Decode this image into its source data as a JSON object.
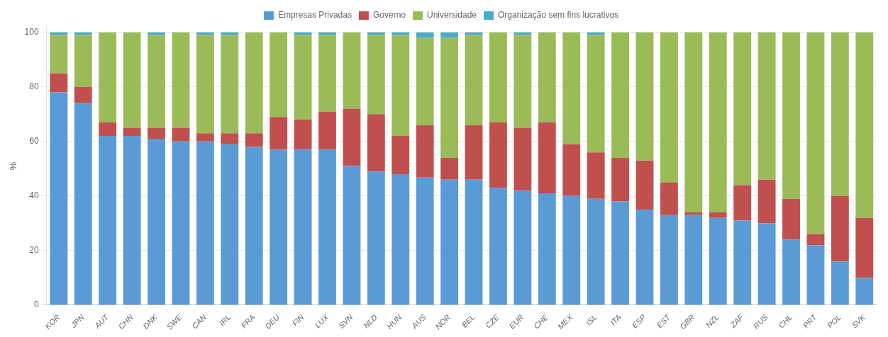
{
  "chart_data": {
    "type": "bar",
    "stacked": true,
    "y_label": "%",
    "categories": [
      "KOR",
      "JPN",
      "AUT",
      "CHN",
      "DNK",
      "SWE",
      "CAN",
      "IRL",
      "FRA",
      "DEU",
      "FIN",
      "LUX",
      "SVN",
      "NLD",
      "HUN",
      "AUS",
      "NOR",
      "BEL",
      "CZE",
      "EUR",
      "CHE",
      "MEX",
      "ISL",
      "ITA",
      "ESP",
      "EST",
      "GBR",
      "NZL",
      "ZAF",
      "RUS",
      "CHL",
      "PRT",
      "POL",
      "SVK"
    ],
    "series": [
      {
        "name": "Empresas Privadas",
        "color": "#5b9bd5",
        "values": [
          78,
          74,
          62,
          62,
          61,
          60,
          60,
          59,
          58,
          57,
          57,
          57,
          51,
          49,
          48,
          47,
          46,
          46,
          43,
          42,
          41,
          40,
          39,
          38,
          35,
          33,
          33,
          32,
          31,
          30,
          24,
          22,
          16,
          10
        ]
      },
      {
        "name": "Governo",
        "color": "#c0504d",
        "values": [
          7,
          6,
          5,
          3,
          4,
          5,
          3,
          4,
          5,
          12,
          11,
          14,
          21,
          21,
          14,
          19,
          8,
          20,
          24,
          23,
          26,
          19,
          17,
          16,
          18,
          12,
          1,
          2,
          13,
          16,
          15,
          4,
          24,
          22
        ]
      },
      {
        "name": "Universidade",
        "color": "#9bbb59",
        "values": [
          14,
          19,
          33,
          35,
          34,
          35,
          36,
          36,
          37,
          31,
          31,
          28,
          28,
          29,
          37,
          32,
          44,
          33,
          33,
          34,
          33,
          41,
          43,
          46,
          47,
          55,
          66,
          66,
          56,
          54,
          61,
          74,
          60,
          68
        ]
      },
      {
        "name": "Organização sem fins lucrativos",
        "color": "#4bacc6",
        "values": [
          1,
          1,
          0,
          0,
          1,
          0,
          1,
          1,
          0,
          0,
          1,
          1,
          0,
          1,
          1,
          2,
          2,
          1,
          0,
          1,
          0,
          0,
          1,
          0,
          0,
          0,
          0,
          0,
          0,
          0,
          0,
          0,
          0,
          0
        ]
      }
    ],
    "ylim": [
      0,
      102
    ],
    "yticks": [
      0,
      20,
      40,
      60,
      80,
      100
    ],
    "grid": true,
    "legend": "top"
  }
}
